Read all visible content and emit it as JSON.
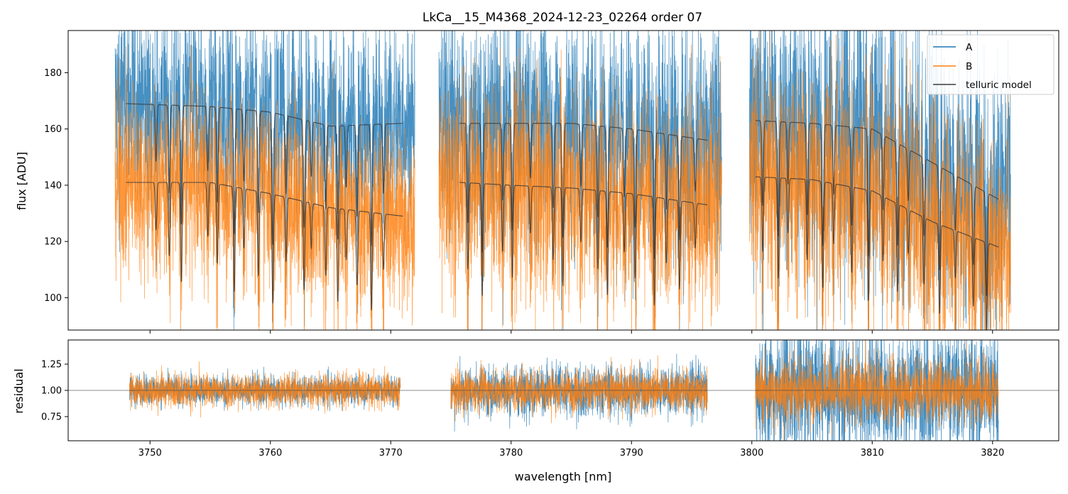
{
  "chart_data": [
    {
      "type": "line",
      "panel": "spectrum",
      "title": "LkCa__15_M4368_2024-12-23_02264  order 07",
      "xlabel": "",
      "ylabel": "flux [ADU]",
      "xlim": [
        3743.2,
        3825.5
      ],
      "ylim": [
        88.5,
        195.0
      ],
      "yticks": [
        100,
        120,
        140,
        160,
        180
      ],
      "xticks": [
        3750,
        3760,
        3770,
        3780,
        3790,
        3800,
        3810,
        3820
      ],
      "legend_position": "top-right",
      "segments": [
        [
          3747.1,
          3772.0
        ],
        [
          3774.0,
          3797.5
        ],
        [
          3799.8,
          3821.5
        ]
      ],
      "series": [
        {
          "name": "A",
          "color": "#1f77b4",
          "description": "noisy spectrum, level ~165 ADU"
        },
        {
          "name": "B",
          "color": "#ff7f0e",
          "description": "noisy spectrum, level ~140 ADU"
        },
        {
          "name": "telluric model",
          "color": "#3a3a3a",
          "description": "two telluric model curves overlaid on A and B"
        }
      ],
      "telluric_model": {
        "A_segments": [
          {
            "x": [
              3748.0,
              3755.0,
              3760.0,
              3765.0,
              3771.0
            ],
            "y": [
              169,
              168,
              166,
              161,
              162
            ]
          },
          {
            "x": [
              3775.7,
              3780.0,
              3785.0,
              3790.0,
              3796.3
            ],
            "y": [
              162,
              162,
              162,
              160,
              156
            ]
          },
          {
            "x": [
              3800.3,
              3805.0,
              3810.0,
              3815.0,
              3820.5
            ],
            "y": [
              163,
              162,
              160,
              148,
              135
            ]
          }
        ],
        "B_segments": [
          {
            "x": [
              3748.0,
              3755.0,
              3760.0,
              3765.0,
              3771.0
            ],
            "y": [
              141,
              141,
              137,
              132,
              129
            ]
          },
          {
            "x": [
              3775.7,
              3780.0,
              3785.0,
              3790.0,
              3796.3
            ],
            "y": [
              141,
              140,
              139,
              137,
              133
            ]
          },
          {
            "x": [
              3800.3,
              3805.0,
              3810.0,
              3815.0,
              3820.5
            ],
            "y": [
              143,
              142,
              138,
              127,
              118
            ]
          }
        ],
        "absorption_lines": [
          3750.5,
          3751.6,
          3752.6,
          3754.8,
          3755.6,
          3757.0,
          3757.8,
          3759.0,
          3760.2,
          3761.3,
          3762.8,
          3763.4,
          3764.6,
          3765.6,
          3766.3,
          3767.2,
          3768.4,
          3769.4,
          3776.4,
          3777.6,
          3779.3,
          3780.1,
          3781.6,
          3783.5,
          3784.3,
          3785.8,
          3787.2,
          3788.0,
          3789.4,
          3790.3,
          3791.9,
          3792.9,
          3794.0,
          3795.3,
          3800.9,
          3802.2,
          3803.0,
          3804.6,
          3805.9,
          3806.8,
          3808.3,
          3809.7,
          3810.9,
          3812.1,
          3813.0,
          3814.3,
          3815.6,
          3816.9,
          3818.4,
          3819.5
        ]
      }
    },
    {
      "type": "line",
      "panel": "residual",
      "title": "",
      "xlabel": "wavelength [nm]",
      "ylabel": "residual",
      "xlim": [
        3743.2,
        3825.5
      ],
      "ylim": [
        0.52,
        1.48
      ],
      "yticks": [
        0.75,
        1.0,
        1.25
      ],
      "xticks": [
        3750,
        3760,
        3770,
        3780,
        3790,
        3800,
        3810,
        3820
      ],
      "reference_line": 1.0,
      "segments": [
        [
          3748.3,
          3770.8
        ],
        [
          3775.0,
          3796.3
        ],
        [
          3800.3,
          3820.5
        ]
      ],
      "series": [
        {
          "name": "A",
          "color": "#1f77b4",
          "scatter": [
            0.07,
            0.12,
            0.3
          ]
        },
        {
          "name": "B",
          "color": "#ff7f0e",
          "scatter": [
            0.08,
            0.1,
            0.15
          ]
        }
      ]
    }
  ],
  "tick_labels": {
    "top_y": [
      "100",
      "120",
      "140",
      "160",
      "180"
    ],
    "bottom_y": [
      "0.75",
      "1.00",
      "1.25"
    ],
    "x": [
      "3750",
      "3760",
      "3770",
      "3780",
      "3790",
      "3800",
      "3810",
      "3820"
    ]
  }
}
